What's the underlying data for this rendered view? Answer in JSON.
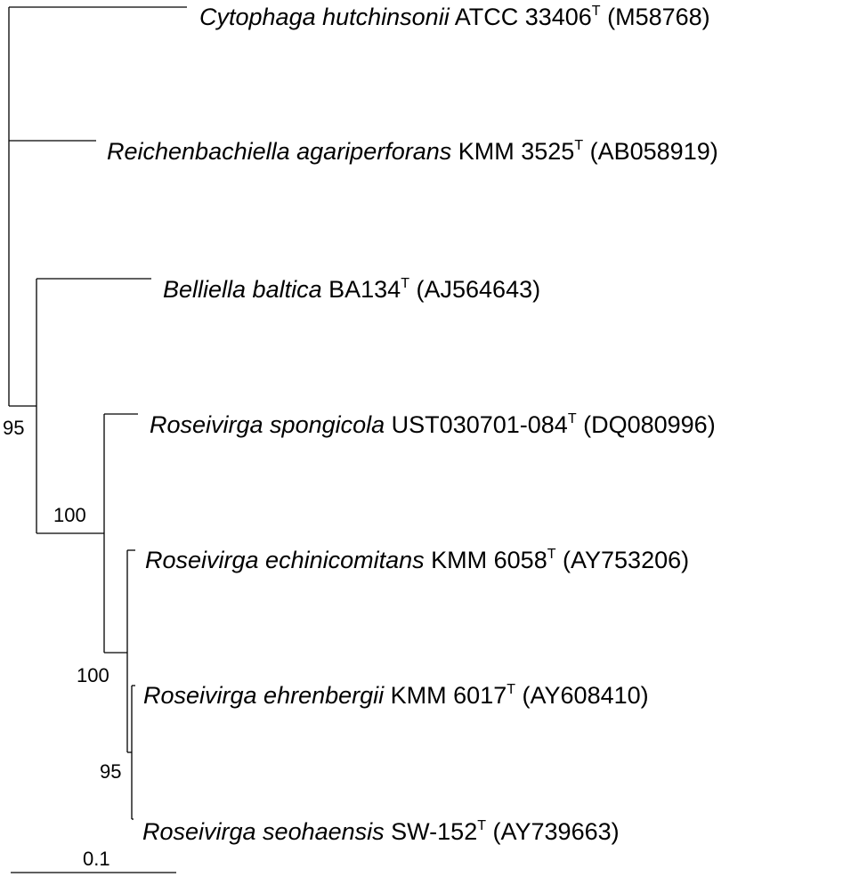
{
  "taxa": [
    {
      "species": "Cytophaga hutchinsonii",
      "strain": "ATCC 33406",
      "type": "T",
      "accession": "(M58768)"
    },
    {
      "species": "Reichenbachiella agariperforans",
      "strain": "KMM 3525",
      "type": "T",
      "accession": "(AB058919)"
    },
    {
      "species": "Belliella baltica",
      "strain": "BA134",
      "type": "T",
      "accession": "(AJ564643)"
    },
    {
      "species": "Roseivirga spongicola",
      "strain": "UST030701-084",
      "type": "T",
      "accession": "(DQ080996)"
    },
    {
      "species": "Roseivirga echinicomitans",
      "strain": "KMM 6058",
      "type": "T",
      "accession": "(AY753206)"
    },
    {
      "species": "Roseivirga ehrenbergii",
      "strain": "KMM 6017",
      "type": "T",
      "accession": "(AY608410)"
    },
    {
      "species": "Roseivirga seohaensis",
      "strain": "SW-152",
      "type": "T",
      "accession": "(AY739663)"
    }
  ],
  "bootstrap": [
    "95",
    "100",
    "100",
    "95"
  ],
  "scale_bar": {
    "label": "0.1"
  }
}
